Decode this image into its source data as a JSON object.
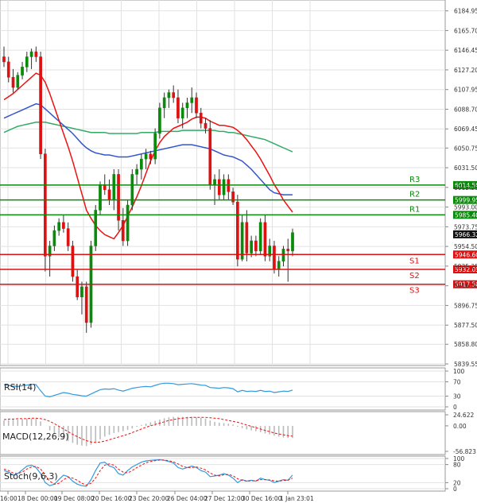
{
  "chart_data": {
    "type": "candlestick",
    "main": {
      "price_ticks": [
        "6184.95",
        "6165.70",
        "6146.45",
        "6127.20",
        "6107.95",
        "6088.70",
        "6069.45",
        "6050.75",
        "6031.50",
        "6012.25",
        "5993.00",
        "5973.75",
        "5954.50",
        "5935.25",
        "5916.00",
        "5896.75",
        "5877.50",
        "5858.80",
        "5839.55"
      ],
      "price_range": [
        5839.55,
        6194
      ],
      "current_price": "5966.32",
      "candles": [
        [
          6140,
          6150,
          6130,
          6135
        ],
        [
          6135,
          6140,
          6115,
          6120
        ],
        [
          6120,
          6128,
          6105,
          6110
        ],
        [
          6110,
          6125,
          6108,
          6122
        ],
        [
          6122,
          6135,
          6118,
          6130
        ],
        [
          6130,
          6145,
          6125,
          6140
        ],
        [
          6140,
          6148,
          6128,
          6145
        ],
        [
          6145,
          6150,
          6135,
          6140
        ],
        [
          6140,
          6145,
          6040,
          6045
        ],
        [
          6045,
          6050,
          5930,
          5945
        ],
        [
          5945,
          5960,
          5925,
          5955
        ],
        [
          5955,
          5975,
          5950,
          5970
        ],
        [
          5970,
          5982,
          5965,
          5978
        ],
        [
          5978,
          5985,
          5968,
          5972
        ],
        [
          5972,
          5978,
          5950,
          5955
        ],
        [
          5955,
          5960,
          5920,
          5925
        ],
        [
          5925,
          5932,
          5902,
          5905
        ],
        [
          5905,
          5920,
          5888,
          5915
        ],
        [
          5915,
          5920,
          5870,
          5880
        ],
        [
          5880,
          5960,
          5875,
          5955
        ],
        [
          5955,
          5995,
          5950,
          5990
        ],
        [
          5990,
          6018,
          5985,
          6015
        ],
        [
          6015,
          6025,
          6005,
          6010
        ],
        [
          6010,
          6020,
          5995,
          6000
        ],
        [
          6000,
          6030,
          5990,
          6025
        ],
        [
          6025,
          6030,
          5970,
          5980
        ],
        [
          5980,
          5992,
          5955,
          5960
        ],
        [
          5960,
          6000,
          5955,
          5995
        ],
        [
          5995,
          6030,
          5990,
          6025
        ],
        [
          6025,
          6035,
          6015,
          6030
        ],
        [
          6030,
          6045,
          6020,
          6040
        ],
        [
          6040,
          6050,
          6030,
          6045
        ],
        [
          6045,
          6048,
          6035,
          6040
        ],
        [
          6040,
          6070,
          6035,
          6065
        ],
        [
          6065,
          6095,
          6060,
          6090
        ],
        [
          6090,
          6105,
          6080,
          6100
        ],
        [
          6100,
          6108,
          6090,
          6105
        ],
        [
          6105,
          6112,
          6095,
          6100
        ],
        [
          6100,
          6108,
          6075,
          6080
        ],
        [
          6080,
          6095,
          6070,
          6090
        ],
        [
          6090,
          6100,
          6080,
          6095
        ],
        [
          6095,
          6110,
          6085,
          6100
        ],
        [
          6100,
          6105,
          6080,
          6085
        ],
        [
          6085,
          6090,
          6070,
          6075
        ],
        [
          6075,
          6080,
          6065,
          6070
        ],
        [
          6070,
          6078,
          6010,
          6015
        ],
        [
          6015,
          6025,
          5995,
          6020
        ],
        [
          6020,
          6030,
          6000,
          6005
        ],
        [
          6005,
          6025,
          6000,
          6020
        ],
        [
          6020,
          6025,
          6000,
          6008
        ],
        [
          6008,
          6012,
          5995,
          5998
        ],
        [
          5998,
          6005,
          5935,
          5942
        ],
        [
          5942,
          5985,
          5940,
          5978
        ],
        [
          5978,
          5990,
          5940,
          5948
        ],
        [
          5948,
          5965,
          5944,
          5960
        ],
        [
          5960,
          5965,
          5945,
          5950
        ],
        [
          5950,
          5982,
          5946,
          5978
        ],
        [
          5978,
          5985,
          5940,
          5945
        ],
        [
          5945,
          5962,
          5940,
          5955
        ],
        [
          5955,
          5960,
          5928,
          5932
        ],
        [
          5932,
          5945,
          5925,
          5940
        ],
        [
          5940,
          5955,
          5935,
          5952
        ],
        [
          5952,
          5962,
          5920,
          5950
        ],
        [
          5950,
          5972,
          5945,
          5968
        ]
      ],
      "red_ma": [
        6098,
        6101,
        6104,
        6108,
        6112,
        6116,
        6120,
        6124,
        6122,
        6115,
        6104,
        6091,
        6078,
        6065,
        6052,
        6038,
        6022,
        6006,
        5990,
        5982,
        5975,
        5970,
        5966,
        5964,
        5962,
        5968,
        5975,
        5984,
        5993,
        6003,
        6014,
        6026,
        6038,
        6048,
        6056,
        6062,
        6066,
        6070,
        6072,
        6074,
        6076,
        6079,
        6081,
        6081,
        6080,
        6077,
        6075,
        6073,
        6073,
        6072,
        6071,
        6068,
        6064,
        6059,
        6053,
        6047,
        6040,
        6032,
        6024,
        6015,
        6008,
        6000,
        5994,
        5988
      ],
      "blue_ma": [
        6080,
        6082,
        6084,
        6086,
        6088,
        6090,
        6092,
        6094,
        6093,
        6089,
        6085,
        6081,
        6077,
        6073,
        6069,
        6065,
        6060,
        6055,
        6051,
        6048,
        6046,
        6045,
        6044,
        6044,
        6043,
        6042,
        6042,
        6042,
        6043,
        6044,
        6045,
        6046,
        6047,
        6048,
        6049,
        6050,
        6051,
        6052,
        6053,
        6054,
        6054,
        6054,
        6053,
        6052,
        6051,
        6050,
        6048,
        6046,
        6044,
        6043,
        6042,
        6040,
        6038,
        6034,
        6030,
        6025,
        6020,
        6015,
        6010,
        6007,
        6006,
        6005,
        6005,
        6005
      ],
      "green_ma": [
        6066,
        6068,
        6070,
        6072,
        6073,
        6074,
        6075,
        6076,
        6076,
        6076,
        6075,
        6074,
        6073,
        6072,
        6071,
        6070,
        6069,
        6068,
        6067,
        6066,
        6066,
        6066,
        6066,
        6065,
        6065,
        6065,
        6065,
        6065,
        6065,
        6065,
        6066,
        6066,
        6066,
        6066,
        6067,
        6067,
        6067,
        6067,
        6067,
        6068,
        6068,
        6068,
        6068,
        6068,
        6068,
        6068,
        6068,
        6067,
        6067,
        6066,
        6066,
        6065,
        6064,
        6063,
        6062,
        6061,
        6060,
        6059,
        6057,
        6055,
        6053,
        6051,
        6049,
        6047
      ],
      "levels": [
        {
          "label": "R3",
          "price": "6014.50",
          "value": 6014.5,
          "kind": "resistance",
          "color": "#0a8a0a"
        },
        {
          "label": "R2",
          "price": "5999.95",
          "value": 5999.95,
          "kind": "resistance",
          "color": "#0a8a0a"
        },
        {
          "label": "R1",
          "price": "5985.40",
          "value": 5985.4,
          "kind": "resistance",
          "color": "#0a8a0a"
        },
        {
          "label": "S1",
          "price": "5946.60",
          "value": 5946.6,
          "kind": "support",
          "color": "#dd1111"
        },
        {
          "label": "S2",
          "price": "5932.05",
          "value": 5932.05,
          "kind": "support",
          "color": "#dd1111"
        },
        {
          "label": "S3",
          "price": "5917.50",
          "value": 5917.5,
          "kind": "support",
          "color": "#dd1111"
        }
      ]
    },
    "rsi": {
      "label": "RSI(14)",
      "ticks": [
        {
          "label": "100",
          "value": 100
        },
        {
          "label": "70",
          "value": 70
        },
        {
          "label": "30",
          "value": 30
        },
        {
          "label": "0",
          "value": 0
        }
      ],
      "values": [
        62,
        60,
        58,
        57,
        59,
        61,
        63,
        62,
        45,
        30,
        28,
        32,
        36,
        40,
        38,
        35,
        33,
        31,
        30,
        36,
        42,
        48,
        50,
        49,
        51,
        47,
        44,
        48,
        52,
        54,
        56,
        57,
        56,
        60,
        64,
        66,
        66,
        65,
        62,
        63,
        64,
        65,
        63,
        61,
        60,
        54,
        53,
        52,
        54,
        53,
        51,
        42,
        46,
        43,
        44,
        43,
        46,
        43,
        44,
        40,
        42,
        44,
        43,
        47
      ]
    },
    "macd": {
      "label": "MACD(12,26,9)",
      "ticks": [
        {
          "label": "24.622",
          "value": 24.622
        },
        {
          "label": "0.00",
          "value": 0
        },
        {
          "label": "-56.823",
          "value": -56.823
        }
      ],
      "histogram": [
        12,
        13,
        14,
        14,
        15,
        16,
        16,
        16,
        10,
        0,
        -10,
        -18,
        -25,
        -30,
        -34,
        -38,
        -42,
        -44,
        -45,
        -42,
        -36,
        -30,
        -24,
        -20,
        -16,
        -14,
        -12,
        -9,
        -6,
        -2,
        2,
        5,
        8,
        11,
        14,
        17,
        19,
        20,
        20,
        20,
        20,
        20,
        19,
        18,
        16,
        12,
        9,
        7,
        6,
        5,
        3,
        -2,
        -5,
        -8,
        -10,
        -12,
        -14,
        -17,
        -19,
        -22,
        -24,
        -26,
        -27,
        -27
      ],
      "signal": [
        14,
        15,
        15,
        16,
        16,
        16,
        17,
        17,
        16,
        14,
        10,
        5,
        -1,
        -7,
        -13,
        -19,
        -24,
        -29,
        -33,
        -36,
        -37,
        -36,
        -34,
        -31,
        -28,
        -25,
        -22,
        -19,
        -15,
        -11,
        -7,
        -3,
        0,
        3,
        6,
        9,
        12,
        14,
        16,
        17,
        18,
        19,
        19,
        19,
        19,
        18,
        17,
        16,
        14,
        12,
        10,
        8,
        5,
        2,
        -1,
        -4,
        -7,
        -10,
        -13,
        -16,
        -18,
        -20,
        -22,
        -23
      ]
    },
    "stoch": {
      "label": "Stoch(9,6,3)",
      "ticks": [
        {
          "label": "100",
          "value": 100
        },
        {
          "label": "80",
          "value": 80
        },
        {
          "label": "20",
          "value": 20
        },
        {
          "label": "0",
          "value": 0
        }
      ],
      "k": [
        60,
        55,
        45,
        50,
        62,
        75,
        78,
        70,
        50,
        20,
        10,
        15,
        30,
        45,
        40,
        25,
        15,
        10,
        8,
        30,
        60,
        85,
        88,
        75,
        70,
        50,
        45,
        60,
        72,
        80,
        88,
        92,
        94,
        95,
        96,
        94,
        90,
        85,
        70,
        65,
        70,
        75,
        70,
        60,
        55,
        40,
        42,
        45,
        50,
        45,
        35,
        20,
        30,
        25,
        28,
        25,
        35,
        30,
        28,
        20,
        25,
        30,
        28,
        45
      ],
      "d": [
        65,
        60,
        52,
        50,
        55,
        65,
        72,
        74,
        65,
        45,
        25,
        15,
        18,
        30,
        38,
        35,
        28,
        18,
        12,
        18,
        35,
        60,
        78,
        82,
        78,
        65,
        55,
        52,
        60,
        70,
        78,
        86,
        90,
        93,
        95,
        95,
        93,
        89,
        82,
        74,
        70,
        70,
        72,
        68,
        62,
        52,
        45,
        42,
        46,
        47,
        43,
        33,
        28,
        25,
        26,
        26,
        30,
        30,
        29,
        26,
        25,
        27,
        28,
        35
      ]
    },
    "x_axis_labels": [
      "16:00",
      "18 Dec 00:00",
      "19 Dec 08:00",
      "20 Dec 16:00",
      "23 Dec 20:00",
      "26 Dec 04:00",
      "27 Dec 12:00",
      "30 Dec 16:00",
      "1 Jan 23:01"
    ]
  },
  "colors": {
    "bull": "#0a8a0a",
    "bear": "#dd1111",
    "red_ma": "#ee1111",
    "blue_ma": "#3355cc",
    "green_ma": "#33aa66",
    "osc_line": "#3399dd",
    "grid": "#e2e2e2",
    "axis": "#888888"
  }
}
